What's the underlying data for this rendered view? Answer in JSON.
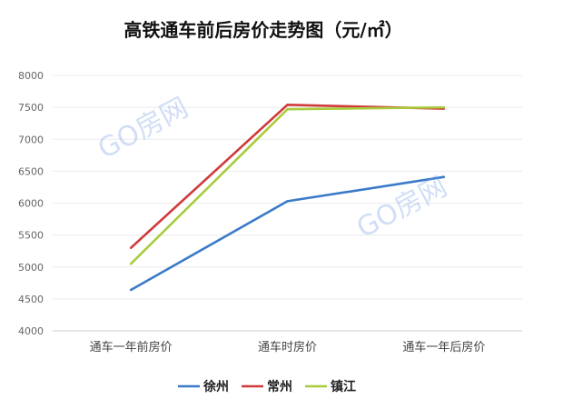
{
  "chart_data": {
    "type": "line",
    "title": "高铁通车前后房价走势图（元/㎡）",
    "categories": [
      "通车一年前房价",
      "通车时房价",
      "通车一年后房价"
    ],
    "series": [
      {
        "name": "徐州",
        "color": "#3a7bc8",
        "values": [
          4640,
          6030,
          6410
        ]
      },
      {
        "name": "常州",
        "color": "#d03a3a",
        "values": [
          5300,
          7540,
          7480
        ]
      },
      {
        "name": "镇江",
        "color": "#a8cc3c",
        "values": [
          5050,
          7470,
          7500
        ]
      }
    ],
    "ylim": [
      4000,
      8000
    ],
    "yticks": [
      4000,
      4500,
      5000,
      5500,
      6000,
      6500,
      7000,
      7500,
      8000
    ],
    "grid": true,
    "legend_position": "bottom",
    "watermark": "GO房网"
  }
}
